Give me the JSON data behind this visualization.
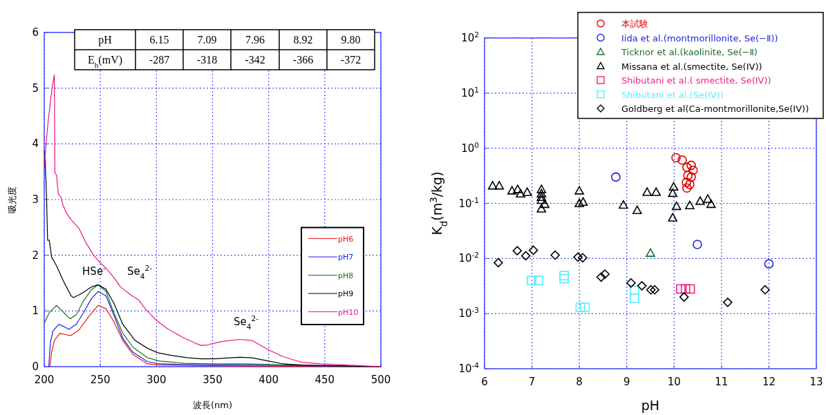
{
  "chart_data": [
    {
      "type": "line",
      "xlabel": "波長(nm)",
      "ylabel": "吸光度",
      "xlim": [
        200,
        500
      ],
      "ylim": [
        0,
        6
      ],
      "xticks": [
        200,
        250,
        300,
        350,
        400,
        450,
        500
      ],
      "yticks": [
        0,
        1,
        2,
        3,
        4,
        5,
        6
      ],
      "grid": true,
      "legend": "bottom right",
      "line_style": "solid",
      "annotations": [
        "pH",
        "6.15",
        "7.09",
        "7.96",
        "8.92",
        "9.80",
        "E$_{h}$(mV)",
        "-287",
        "-318",
        "-342",
        "-366",
        "-372",
        "HSe$^{-}$",
        "Se$_{4}$$^{2-}$",
        "Se$_{4}$$^{2-}$"
      ],
      "series": [
        {
          "name": "pH6",
          "color": "#ee1111",
          "x": [
            205,
            206.6,
            209,
            214,
            220,
            224,
            231,
            240,
            248,
            255,
            262,
            270,
            279,
            292,
            303,
            336,
            380,
            500
          ],
          "values": [
            0,
            0.26,
            0.47,
            0.6,
            0.57,
            0.56,
            0.66,
            0.91,
            1.1,
            1.04,
            0.81,
            0.47,
            0.22,
            0.05,
            0.03,
            0.02,
            0.01,
            0
          ]
        },
        {
          "name": "pH7",
          "color": "#1a1aee",
          "x": [
            204,
            205.5,
            207.7,
            213,
            217.5,
            222,
            228.5,
            235,
            242,
            248,
            255,
            262,
            270,
            279,
            292,
            303,
            325,
            380,
            424,
            500
          ],
          "values": [
            0,
            0.43,
            0.64,
            0.76,
            0.72,
            0.67,
            0.76,
            0.97,
            1.22,
            1.35,
            1.27,
            0.93,
            0.51,
            0.26,
            0.09,
            0.05,
            0.04,
            0.03,
            0.02,
            0
          ]
        },
        {
          "name": "pH8",
          "color": "#117711",
          "x": [
            200,
            204.5,
            211,
            217.5,
            223,
            228.5,
            235,
            242,
            248,
            255,
            262,
            270,
            279,
            292,
            303,
            325,
            347,
            380,
            402,
            435,
            500
          ],
          "values": [
            0.78,
            0.97,
            1.1,
            0.97,
            0.86,
            0.93,
            1.18,
            1.38,
            1.47,
            1.35,
            0.97,
            0.6,
            0.35,
            0.16,
            0.1,
            0.06,
            0.05,
            0.05,
            0.04,
            0.02,
            0
          ]
        },
        {
          "name": "pH9",
          "color": "#000000",
          "x": [
            200.5,
            202,
            203,
            204.5,
            206.5,
            211,
            217.5,
            224,
            226,
            233,
            242,
            248,
            255,
            262,
            270,
            281,
            292,
            301,
            314,
            328,
            340,
            352,
            374,
            385,
            400,
            413,
            429,
            500
          ],
          "values": [
            3.87,
            3.1,
            2.27,
            2.27,
            1.97,
            1.81,
            1.52,
            1.27,
            1.24,
            1.31,
            1.43,
            1.47,
            1.39,
            1.14,
            0.76,
            0.47,
            0.33,
            0.25,
            0.2,
            0.16,
            0.14,
            0.14,
            0.17,
            0.16,
            0.1,
            0.05,
            0.03,
            0
          ]
        },
        {
          "name": "pH10",
          "color": "#ee1188",
          "x": [
            200,
            201,
            202,
            203,
            204,
            205,
            206,
            208,
            209,
            209.5,
            211,
            212.5,
            215,
            216.5,
            220,
            224,
            231,
            237,
            244,
            250,
            255,
            262,
            268,
            277,
            284,
            290,
            300,
            310,
            323,
            336,
            340,
            345,
            358,
            374,
            385,
            400,
            413,
            429,
            446,
            469,
            500
          ],
          "values": [
            3.57,
            3.83,
            4.08,
            4.29,
            4.5,
            4.66,
            4.85,
            5.13,
            5.24,
            3.48,
            3.44,
            3.1,
            3.04,
            2.91,
            2.75,
            2.64,
            2.48,
            2.23,
            2.0,
            1.86,
            1.77,
            1.6,
            1.43,
            1.29,
            1.2,
            1.04,
            0.83,
            0.68,
            0.53,
            0.41,
            0.38,
            0.39,
            0.45,
            0.49,
            0.47,
            0.3,
            0.18,
            0.08,
            0.05,
            0.03,
            0
          ]
        }
      ]
    },
    {
      "type": "scatter",
      "xlabel": "pH",
      "ylabel": "K$_{d}$(m$^{3}$/kg)",
      "xlim": [
        6,
        13
      ],
      "ylim": [
        0.0001,
        100
      ],
      "log": "y",
      "xticks": [
        6,
        7,
        8,
        9,
        10,
        11,
        12,
        13
      ],
      "yticks": [
        {
          "value": 0.0001,
          "label": "10$^{-4}$"
        },
        {
          "value": 0.001,
          "label": "10$^{-3}$"
        },
        {
          "value": 0.01,
          "label": "10$^{-2}$"
        },
        {
          "value": 0.1,
          "label": "10$^{-1}$"
        },
        {
          "value": 1,
          "label": "10$^{0}$"
        },
        {
          "value": 10,
          "label": "10$^{1}$"
        },
        {
          "value": 100,
          "label": "10$^{2}$"
        }
      ],
      "grid": true,
      "legend": "top right",
      "series": [
        {
          "name": "本試験",
          "color": "#dd0000",
          "marker": "circle",
          "x": [
            10.04,
            10.17,
            10.27,
            10.36,
            10.4,
            10.29,
            10.36,
            10.26,
            10.33,
            10.27
          ],
          "values": [
            0.67,
            0.61,
            0.45,
            0.49,
            0.4,
            0.32,
            0.3,
            0.24,
            0.22,
            0.19
          ]
        },
        {
          "name": "Iida et al.(montmorillonite, Se(−Ⅱ))",
          "color": "#2222dd",
          "marker": "circle",
          "x": [
            8.77,
            10.49,
            12.0
          ],
          "values": [
            0.3,
            0.018,
            0.008
          ]
        },
        {
          "name": "Ticknor et al.(kaolinite, Se(−Ⅱ)",
          "color": "#1a6e2a",
          "marker": "triangle",
          "x": [
            9.5
          ],
          "values": [
            0.0126
          ]
        },
        {
          "name": "Missana et al.(smectite, Se(IV))",
          "color": "#000000",
          "marker": "triangle",
          "x": [
            6.17,
            6.31,
            6.58,
            6.7,
            6.76,
            6.9,
            7.2,
            7.2,
            7.2,
            7.2,
            7.27,
            7.2,
            8.0,
            8.0,
            8.08,
            8.93,
            9.22,
            9.43,
            9.62,
            9.99,
            9.97,
            10.05,
            9.97,
            10.33,
            10.55,
            10.71,
            10.78
          ],
          "values": [
            0.21,
            0.21,
            0.17,
            0.18,
            0.15,
            0.16,
            0.18,
            0.15,
            0.13,
            0.115,
            0.097,
            0.08,
            0.17,
            0.1,
            0.106,
            0.094,
            0.075,
            0.16,
            0.16,
            0.2,
            0.154,
            0.089,
            0.055,
            0.092,
            0.11,
            0.12,
            0.097
          ]
        },
        {
          "name": "Shibutani et al.( smectite, Se(IV))",
          "color": "#ee2288",
          "marker": "square",
          "x": [
            10.14,
            10.24,
            10.34
          ],
          "values": [
            0.0028,
            0.0028,
            0.0028
          ]
        },
        {
          "name": "Shibutani et al.(Se(IV))",
          "color": "#55eeff",
          "marker": "square",
          "x": [
            6.99,
            7.14,
            7.68,
            7.68,
            8.02,
            8.12,
            9.16,
            9.16
          ],
          "values": [
            0.004,
            0.004,
            0.0049,
            0.0043,
            0.0013,
            0.0013,
            0.00266,
            0.00188
          ]
        },
        {
          "name": "Goldberg et al(Ca-montmorillonite,Se(IV))",
          "color": "#000000",
          "marker": "diamond",
          "x": [
            6.29,
            6.69,
            6.87,
            7.03,
            7.49,
            7.97,
            8.07,
            8.46,
            8.54,
            9.09,
            9.32,
            9.51,
            9.59,
            10.21,
            11.13,
            11.92
          ],
          "values": [
            0.0084,
            0.0138,
            0.0112,
            0.0141,
            0.0115,
            0.0106,
            0.0103,
            0.0046,
            0.0052,
            0.0036,
            0.0032,
            0.0027,
            0.0027,
            0.002,
            0.0016,
            0.0027
          ]
        }
      ]
    }
  ]
}
